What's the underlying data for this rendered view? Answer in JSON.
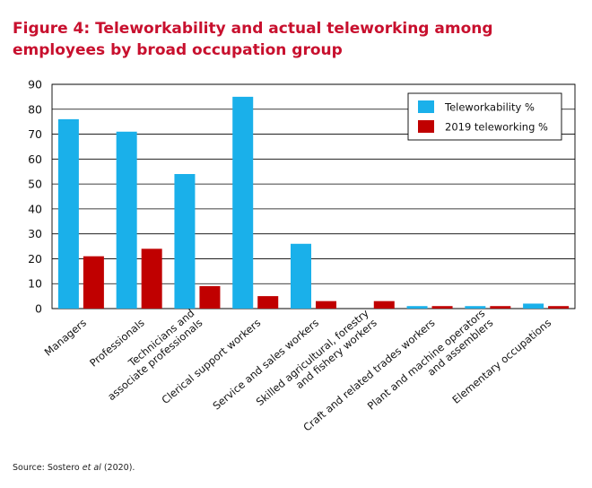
{
  "figure": {
    "title": "Figure 4: Teleworkability and actual teleworking among employees by broad occupation group",
    "source_prefix": "Source: Sostero ",
    "source_italic": "et al",
    "source_suffix": " (2020)."
  },
  "chart_data": {
    "type": "bar",
    "title": "Figure 4: Teleworkability and actual teleworking among employees by broad occupation group",
    "categories": [
      [
        "Managers"
      ],
      [
        "Professionals"
      ],
      [
        "Technicians and",
        "associate professionals"
      ],
      [
        "Clerical support workers"
      ],
      [
        "Service and sales workers"
      ],
      [
        "Skilled agricultural, forestry",
        "and fishery workers"
      ],
      [
        "Craft and related trades workers"
      ],
      [
        "Plant and machine operators",
        "and assemblers"
      ],
      [
        "Elementary occupations"
      ]
    ],
    "series": [
      {
        "name": "Teleworkability %",
        "color": "#1ab0ea",
        "values": [
          76,
          71,
          54,
          85,
          26,
          0,
          1,
          1,
          2
        ]
      },
      {
        "name": "2019 teleworking %",
        "color": "#c00000",
        "values": [
          21,
          24,
          9,
          5,
          3,
          3,
          1,
          1,
          1
        ]
      }
    ],
    "ylim": [
      0,
      90
    ],
    "yticks": [
      0,
      10,
      20,
      30,
      40,
      50,
      60,
      70,
      80,
      90
    ],
    "grid": true,
    "legend": "top-right"
  }
}
